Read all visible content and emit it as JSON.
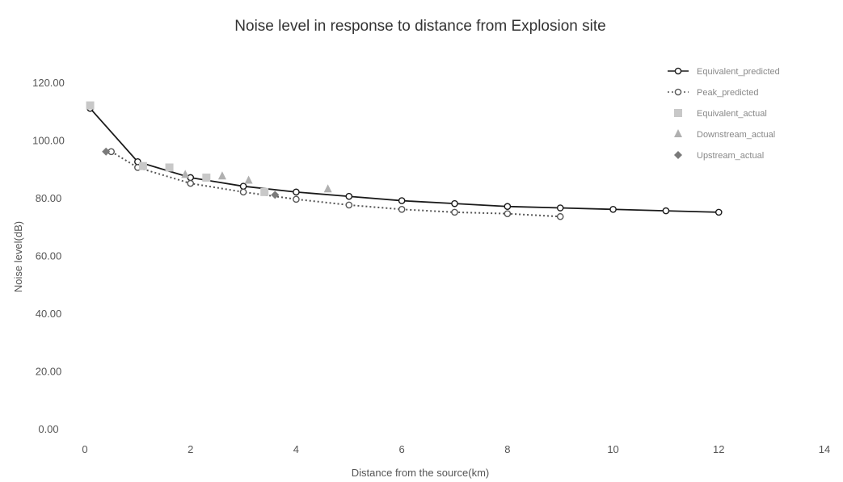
{
  "chart_data": {
    "type": "scatter",
    "title": "Noise level in response to distance from Explosion site",
    "xlabel": "Distance from the source(km)",
    "ylabel": "Noise level(dB)",
    "xlim": [
      0,
      14
    ],
    "ylim": [
      0,
      120
    ],
    "x_ticks": [
      "0",
      "2",
      "4",
      "6",
      "8",
      "10",
      "12",
      "14"
    ],
    "y_ticks": [
      "0.00",
      "20.00",
      "40.00",
      "60.00",
      "80.00",
      "100.00",
      "120.00"
    ],
    "grid": false,
    "legend_position": "top-right",
    "series": [
      {
        "name": "Equivalent_predicted",
        "style": "solid-line-open-circle",
        "color": "#1a1a1a",
        "x": [
          0.1,
          1,
          2,
          3,
          4,
          5,
          6,
          7,
          8,
          9,
          10,
          11,
          12
        ],
        "y": [
          111,
          92.5,
          87,
          84,
          82,
          80.5,
          79,
          78,
          77,
          76.5,
          76,
          75.5,
          75
        ]
      },
      {
        "name": "Peak_predicted",
        "style": "dotted-line-open-circle",
        "color": "#555555",
        "x": [
          0.5,
          1,
          2,
          3,
          4,
          5,
          6,
          7,
          8,
          9
        ],
        "y": [
          96,
          90.5,
          85,
          82,
          79.5,
          77.5,
          76,
          75,
          74.5,
          73.5
        ]
      },
      {
        "name": "Equivalent_actual",
        "style": "square-marker",
        "color": "#c8c8c8",
        "x": [
          0.1,
          1.1,
          1.6,
          2.3,
          3.4
        ],
        "y": [
          112,
          91,
          90.5,
          87,
          82
        ]
      },
      {
        "name": "Downstream_actual",
        "style": "triangle-marker",
        "color": "#b0b0b0",
        "x": [
          1.9,
          2.6,
          3.1,
          4.6
        ],
        "y": [
          88,
          87.5,
          86,
          83
        ]
      },
      {
        "name": "Upstream_actual",
        "style": "diamond-marker",
        "color": "#7a7a7a",
        "x": [
          0.4,
          3.6
        ],
        "y": [
          96,
          81
        ]
      }
    ]
  }
}
